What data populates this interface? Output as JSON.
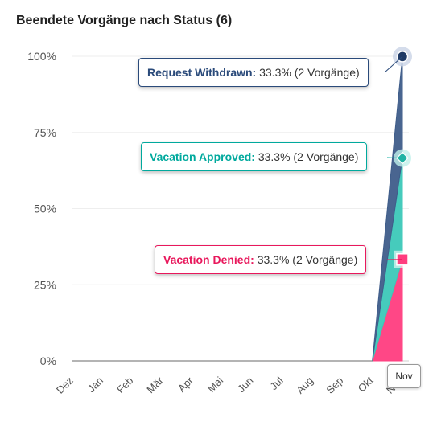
{
  "chart_data": {
    "type": "area",
    "title": "Beendete Vorgänge nach Status (6)",
    "categories": [
      "Dez",
      "Jan",
      "Feb",
      "Mär",
      "Apr",
      "Mai",
      "Jun",
      "Jul",
      "Aug",
      "Sep",
      "Okt",
      "Nov"
    ],
    "ylim": [
      0,
      100
    ],
    "yticks": [
      "0%",
      "25%",
      "50%",
      "75%",
      "100%"
    ],
    "stacked": true,
    "series": [
      {
        "name": "Vacation Denied",
        "color": "#ff3d7f",
        "values": [
          0,
          0,
          0,
          0,
          0,
          0,
          0,
          0,
          0,
          0,
          0,
          33.3
        ],
        "count": 2
      },
      {
        "name": "Vacation Approved",
        "color": "#3cc8b8",
        "values": [
          0,
          0,
          0,
          0,
          0,
          0,
          0,
          0,
          0,
          0,
          0,
          33.3
        ],
        "count": 2
      },
      {
        "name": "Request Withdrawn",
        "color": "#3f5d8a",
        "values": [
          0,
          0,
          0,
          0,
          0,
          0,
          0,
          0,
          0,
          0,
          0,
          33.3
        ],
        "count": 2
      }
    ],
    "tooltips": [
      {
        "label": "Request Withdrawn:",
        "value": "33.3% (2 Vorgänge)",
        "color": "#2a4a7a"
      },
      {
        "label": "Vacation Approved:",
        "value": "33.3% (2 Vorgänge)",
        "color": "#00a99d"
      },
      {
        "label": "Vacation Denied:",
        "value": "33.3% (2 Vorgänge)",
        "color": "#e8185c"
      }
    ],
    "x_hover_label": "Nov",
    "grid": true
  }
}
